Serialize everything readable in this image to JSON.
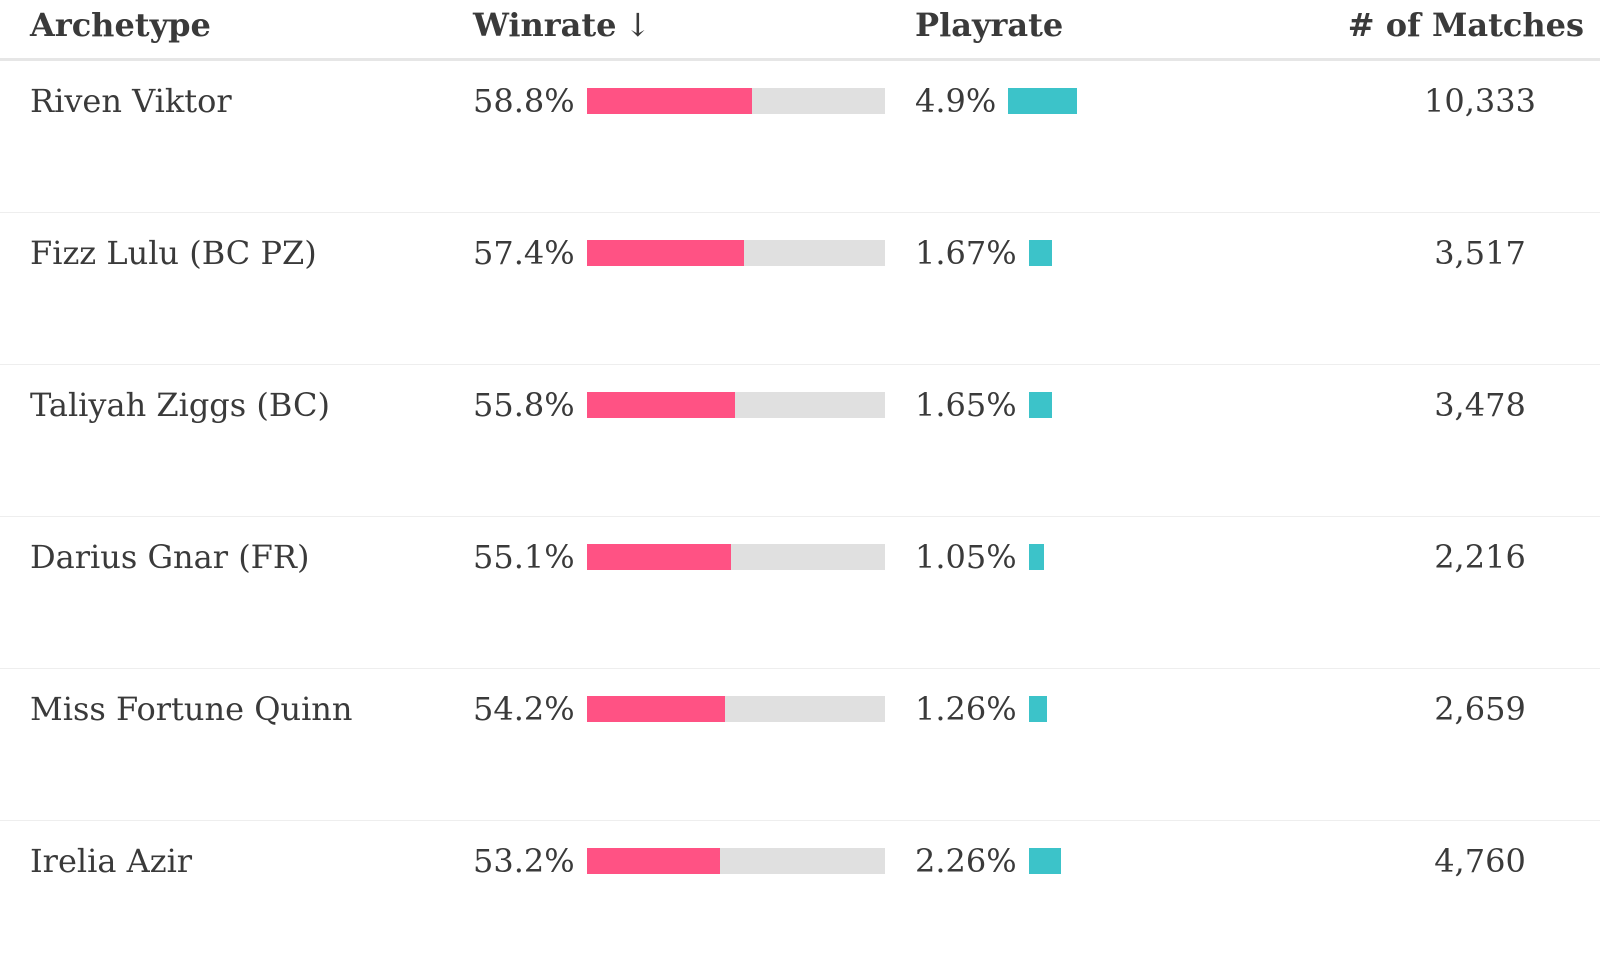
{
  "header": {
    "archetype": "Archetype",
    "winrate": "Winrate",
    "sort_indicator": "↓",
    "playrate": "Playrate",
    "matches": "# of Matches"
  },
  "colors": {
    "winrate_bar": "#ff5284",
    "winrate_track": "#e0e0e0",
    "playrate_bar": "#3cc3c9"
  },
  "rows": [
    {
      "archetype": "Riven Viktor",
      "winrate": "58.8%",
      "winrate_value": 58.8,
      "playrate": "4.9%",
      "playrate_value": 4.9,
      "matches": "10,333"
    },
    {
      "archetype": "Fizz Lulu (BC PZ)",
      "winrate": "57.4%",
      "winrate_value": 57.4,
      "playrate": "1.67%",
      "playrate_value": 1.67,
      "matches": "3,517"
    },
    {
      "archetype": "Taliyah Ziggs (BC)",
      "winrate": "55.8%",
      "winrate_value": 55.8,
      "playrate": "1.65%",
      "playrate_value": 1.65,
      "matches": "3,478"
    },
    {
      "archetype": "Darius Gnar (FR)",
      "winrate": "55.1%",
      "winrate_value": 55.1,
      "playrate": "1.05%",
      "playrate_value": 1.05,
      "matches": "2,216"
    },
    {
      "archetype": "Miss Fortune Quinn",
      "winrate": "54.2%",
      "winrate_value": 54.2,
      "playrate": "1.26%",
      "playrate_value": 1.26,
      "matches": "2,659"
    },
    {
      "archetype": "Irelia Azir",
      "winrate": "53.2%",
      "winrate_value": 53.2,
      "playrate": "2.26%",
      "playrate_value": 2.26,
      "matches": "4,760"
    }
  ]
}
